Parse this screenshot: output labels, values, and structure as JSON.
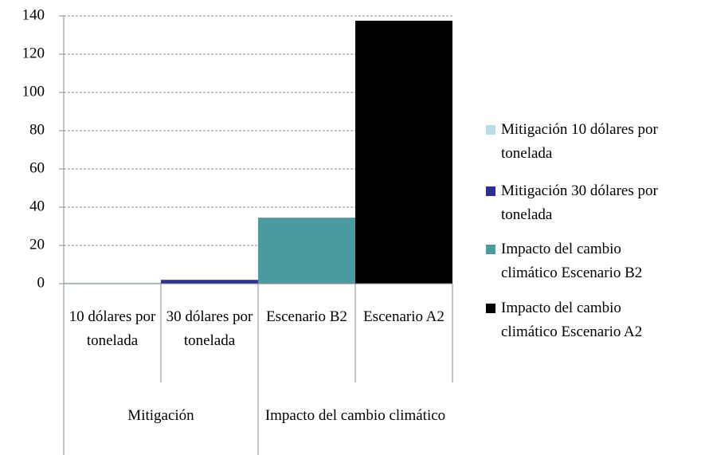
{
  "chart_data": {
    "type": "bar",
    "categories": [
      "10 dólares por tonelada",
      "30 dólares por tonelada",
      "Escenario B2",
      "Escenario A2"
    ],
    "groups": [
      {
        "name": "Mitigación",
        "span": 2
      },
      {
        "name": "Impacto del cambio climático",
        "span": 2
      }
    ],
    "series": [
      {
        "name": "Mitigación 10 dólares por tonelada",
        "color": "#b7dde8",
        "values": [
          0.5,
          null,
          null,
          null
        ]
      },
      {
        "name": "Mitigación 30 dólares por tonelada",
        "color": "#2e3192",
        "values": [
          null,
          2,
          null,
          null
        ]
      },
      {
        "name": "Impacto del cambio climático Escenario B2",
        "color": "#4a9a9f",
        "values": [
          null,
          null,
          34.5,
          null
        ]
      },
      {
        "name": "Impacto del cambio climático Escenario A2",
        "color": "#000000",
        "values": [
          null,
          null,
          null,
          137.5
        ]
      }
    ],
    "ylim": [
      0,
      140
    ],
    "yticks": [
      0,
      20,
      40,
      60,
      80,
      100,
      120,
      140
    ],
    "grid": true,
    "legend": "right"
  }
}
